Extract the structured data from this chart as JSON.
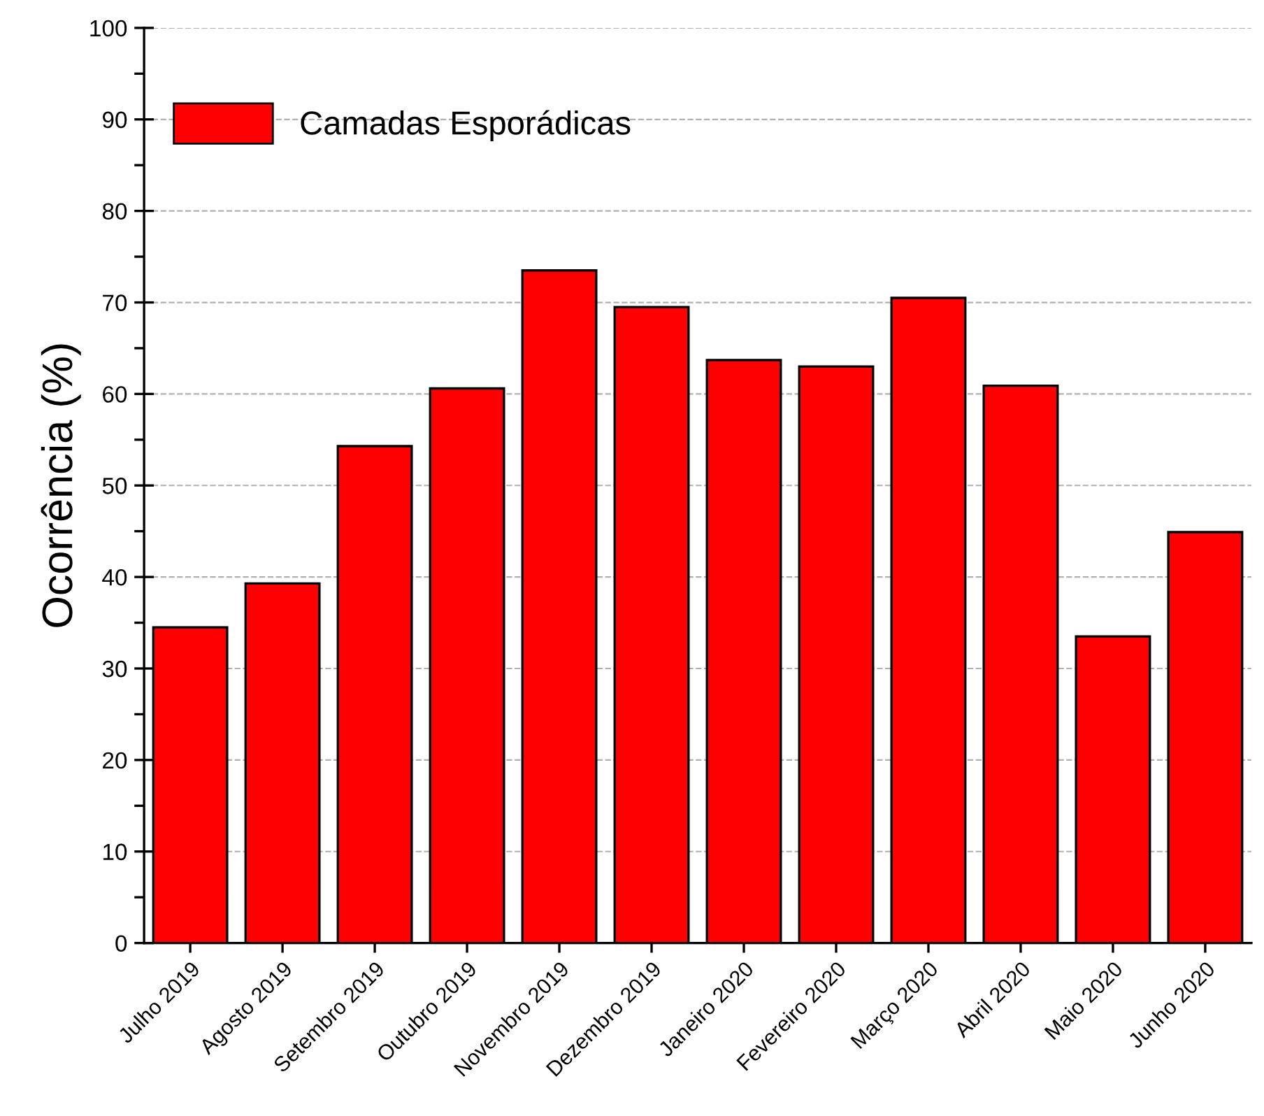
{
  "chart_data": {
    "type": "bar",
    "ylabel": "Ocorrência (%)",
    "categories": [
      "Julho 2019",
      "Agosto 2019",
      "Setembro 2019",
      "Outubro 2019",
      "Novembro 2019",
      "Dezembro 2019",
      "Janeiro 2020",
      "Fevereiro 2020",
      "Março 2020",
      "Abril 2020",
      "Maio 2020",
      "Junho 2020"
    ],
    "series": [
      {
        "name": "Camadas Esporádicas",
        "color": "#ff0000",
        "values": [
          34.5,
          39.3,
          54.3,
          60.6,
          73.5,
          69.5,
          63.7,
          63.0,
          70.5,
          60.9,
          33.5,
          44.9
        ]
      }
    ],
    "ylim": [
      0,
      100
    ],
    "yticks": [
      0,
      10,
      20,
      30,
      40,
      50,
      60,
      70,
      80,
      90,
      100
    ],
    "grid": "y",
    "legend": "top left"
  }
}
